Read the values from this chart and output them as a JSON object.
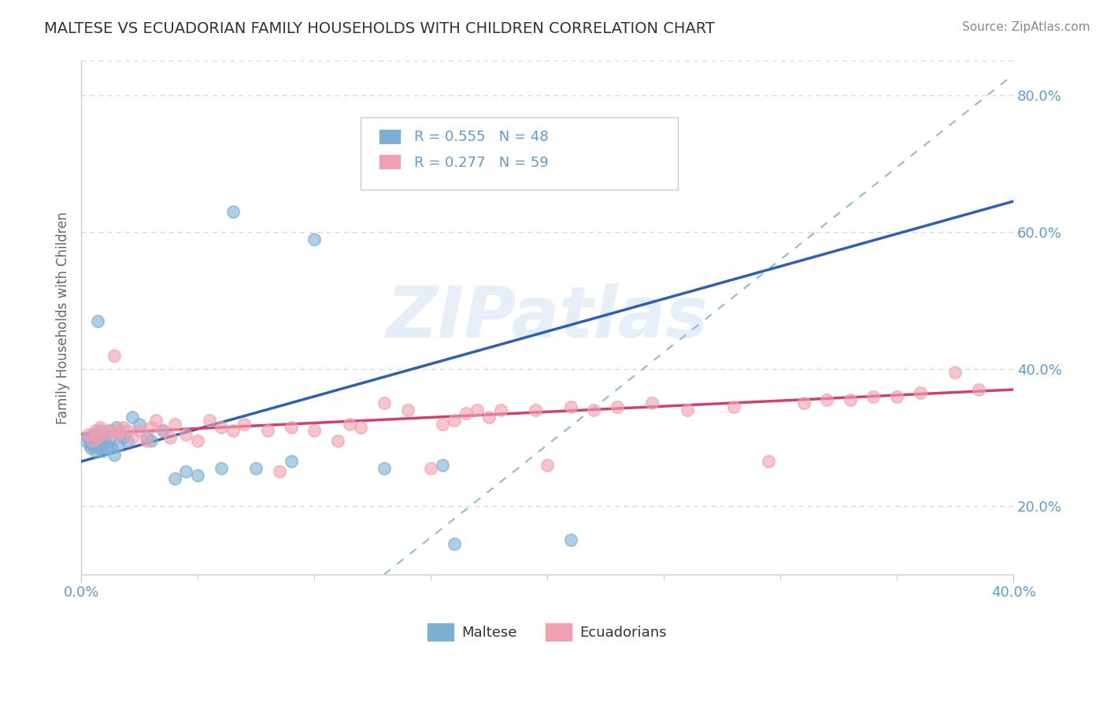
{
  "title": "MALTESE VS ECUADORIAN FAMILY HOUSEHOLDS WITH CHILDREN CORRELATION CHART",
  "source": "Source: ZipAtlas.com",
  "ylabel": "Family Households with Children",
  "ytick_values": [
    0.2,
    0.4,
    0.6,
    0.8
  ],
  "ytick_labels": [
    "20.0%",
    "40.0%",
    "60.0%",
    "80.0%"
  ],
  "xlim": [
    0.0,
    0.4
  ],
  "ylim": [
    0.1,
    0.85
  ],
  "legend1_r": "R = 0.555",
  "legend1_n": "N = 48",
  "legend2_r": "R = 0.277",
  "legend2_n": "N = 59",
  "legend_bottom_label1": "Maltese",
  "legend_bottom_label2": "Ecuadorians",
  "watermark": "ZIPatlas",
  "maltese_dot_color": "#7BAFD4",
  "ecuadorian_dot_color": "#F0A0B0",
  "maltese_line_color": "#3060B0",
  "ecuadorian_line_color": "#D04070",
  "ref_line_color": "#90B8DC",
  "grid_color": "#D8D8D8",
  "title_color": "#333333",
  "source_color": "#888888",
  "tick_color": "#5B9BD5",
  "ylabel_color": "#666666",
  "maltese_x": [
    0.002,
    0.003,
    0.004,
    0.004,
    0.005,
    0.005,
    0.005,
    0.006,
    0.006,
    0.006,
    0.007,
    0.007,
    0.007,
    0.008,
    0.008,
    0.008,
    0.009,
    0.009,
    0.009,
    0.01,
    0.01,
    0.011,
    0.012,
    0.012,
    0.013,
    0.014,
    0.015,
    0.016,
    0.017,
    0.018,
    0.02,
    0.022,
    0.025,
    0.028,
    0.03,
    0.035,
    0.04,
    0.045,
    0.05,
    0.06,
    0.065,
    0.075,
    0.09,
    0.1,
    0.13,
    0.155,
    0.16,
    0.21
  ],
  "maltese_y": [
    0.295,
    0.3,
    0.285,
    0.29,
    0.3,
    0.305,
    0.29,
    0.28,
    0.295,
    0.305,
    0.47,
    0.29,
    0.305,
    0.285,
    0.31,
    0.295,
    0.3,
    0.28,
    0.295,
    0.305,
    0.295,
    0.285,
    0.31,
    0.295,
    0.285,
    0.275,
    0.315,
    0.29,
    0.305,
    0.3,
    0.295,
    0.33,
    0.32,
    0.3,
    0.295,
    0.31,
    0.24,
    0.25,
    0.245,
    0.255,
    0.63,
    0.255,
    0.265,
    0.59,
    0.255,
    0.26,
    0.145,
    0.15
  ],
  "ecuadorian_x": [
    0.003,
    0.005,
    0.006,
    0.007,
    0.008,
    0.01,
    0.012,
    0.014,
    0.015,
    0.016,
    0.018,
    0.02,
    0.022,
    0.025,
    0.028,
    0.03,
    0.032,
    0.035,
    0.038,
    0.04,
    0.045,
    0.05,
    0.055,
    0.06,
    0.065,
    0.07,
    0.08,
    0.085,
    0.09,
    0.1,
    0.11,
    0.115,
    0.12,
    0.13,
    0.14,
    0.15,
    0.155,
    0.16,
    0.165,
    0.17,
    0.175,
    0.18,
    0.195,
    0.2,
    0.21,
    0.22,
    0.23,
    0.245,
    0.26,
    0.28,
    0.295,
    0.31,
    0.32,
    0.33,
    0.34,
    0.35,
    0.36,
    0.375,
    0.385
  ],
  "ecuadorian_y": [
    0.305,
    0.295,
    0.31,
    0.3,
    0.315,
    0.305,
    0.31,
    0.42,
    0.31,
    0.305,
    0.315,
    0.31,
    0.3,
    0.31,
    0.295,
    0.315,
    0.325,
    0.31,
    0.3,
    0.32,
    0.305,
    0.295,
    0.325,
    0.315,
    0.31,
    0.32,
    0.31,
    0.25,
    0.315,
    0.31,
    0.295,
    0.32,
    0.315,
    0.35,
    0.34,
    0.255,
    0.32,
    0.325,
    0.335,
    0.34,
    0.33,
    0.34,
    0.34,
    0.26,
    0.345,
    0.34,
    0.345,
    0.35,
    0.34,
    0.345,
    0.265,
    0.35,
    0.355,
    0.355,
    0.36,
    0.36,
    0.365,
    0.395,
    0.37
  ],
  "maltese_line_x0": 0.0,
  "maltese_line_y0": 0.265,
  "maltese_line_x1": 0.4,
  "maltese_line_y1": 0.645,
  "ecuadorian_line_x0": 0.0,
  "ecuadorian_line_y0": 0.305,
  "ecuadorian_line_x1": 0.4,
  "ecuadorian_line_y1": 0.37,
  "ref_line_x0": 0.13,
  "ref_line_y0": 0.1,
  "ref_line_x1": 0.4,
  "ref_line_y1": 0.83
}
